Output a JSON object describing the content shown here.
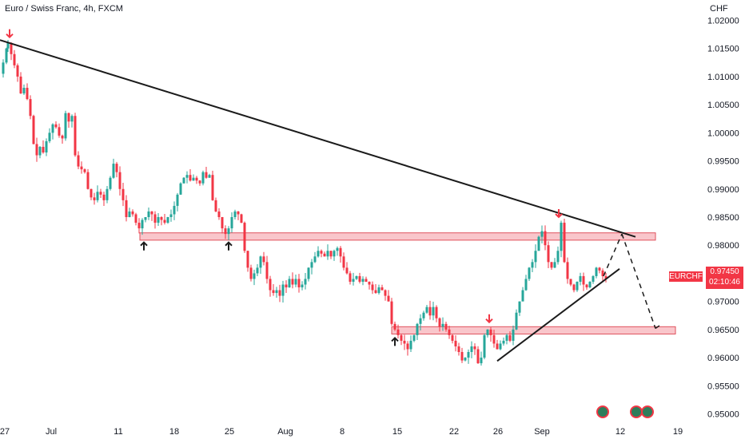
{
  "header": {
    "title": "Euro / Swiss Franc, 4h, FXCM",
    "currency": "CHF"
  },
  "price_marker": {
    "symbol": "EURCHF",
    "price": "0.97450",
    "countdown": "02:10:46"
  },
  "colors": {
    "bull": "#26a69a",
    "bear": "#f23645",
    "trend": "#1b1b1b",
    "zone_fill": "#f7b3b9",
    "zone_border": "#e0525e",
    "arrow_down": "#f23645",
    "arrow_up": "#1b1b1b"
  },
  "chart_data": {
    "type": "candlestick",
    "symbol": "EURCHF",
    "timeframe": "4h",
    "x_ticks": [
      "27",
      "Jul",
      "11",
      "18",
      "25",
      "Aug",
      "8",
      "15",
      "22",
      "26",
      "Sep",
      "12",
      "19"
    ],
    "y_ticks": [
      "1.02000",
      "1.01500",
      "1.01000",
      "1.00500",
      "1.00000",
      "0.99500",
      "0.99000",
      "0.98500",
      "0.98000",
      "0.97500",
      "0.97000",
      "0.96500",
      "0.96000",
      "0.95500",
      "0.95000"
    ],
    "ylim": [
      0.9495,
      1.0205
    ],
    "close_path": [
      {
        "x": 0,
        "y": 1.0105
      },
      {
        "x": 4,
        "y": 1.0125
      },
      {
        "x": 8,
        "y": 1.015
      },
      {
        "x": 10,
        "y": 1.016
      },
      {
        "x": 14,
        "y": 1.014
      },
      {
        "x": 18,
        "y": 1.012
      },
      {
        "x": 22,
        "y": 1.01
      },
      {
        "x": 26,
        "y": 1.007
      },
      {
        "x": 30,
        "y": 1.008
      },
      {
        "x": 34,
        "y": 1.006
      },
      {
        "x": 38,
        "y": 1.003
      },
      {
        "x": 42,
        "y": 0.998
      },
      {
        "x": 46,
        "y": 0.996
      },
      {
        "x": 50,
        "y": 0.9975
      },
      {
        "x": 54,
        "y": 0.9965
      },
      {
        "x": 58,
        "y": 0.9985
      },
      {
        "x": 62,
        "y": 1.0
      },
      {
        "x": 66,
        "y": 1.0015
      },
      {
        "x": 70,
        "y": 1.001
      },
      {
        "x": 74,
        "y": 0.9995
      },
      {
        "x": 78,
        "y": 0.999
      },
      {
        "x": 82,
        "y": 1.0035
      },
      {
        "x": 86,
        "y": 1.002
      },
      {
        "x": 90,
        "y": 1.003
      },
      {
        "x": 94,
        "y": 0.996
      },
      {
        "x": 98,
        "y": 0.994
      },
      {
        "x": 102,
        "y": 0.9935
      },
      {
        "x": 106,
        "y": 0.993
      },
      {
        "x": 110,
        "y": 0.99
      },
      {
        "x": 114,
        "y": 0.9885
      },
      {
        "x": 118,
        "y": 0.988
      },
      {
        "x": 122,
        "y": 0.9895
      },
      {
        "x": 126,
        "y": 0.989
      },
      {
        "x": 130,
        "y": 0.988
      },
      {
        "x": 134,
        "y": 0.99
      },
      {
        "x": 138,
        "y": 0.992
      },
      {
        "x": 142,
        "y": 0.9945
      },
      {
        "x": 146,
        "y": 0.993
      },
      {
        "x": 150,
        "y": 0.99
      },
      {
        "x": 154,
        "y": 0.988
      },
      {
        "x": 158,
        "y": 0.985
      },
      {
        "x": 162,
        "y": 0.986
      },
      {
        "x": 166,
        "y": 0.9855
      },
      {
        "x": 170,
        "y": 0.984
      },
      {
        "x": 174,
        "y": 0.983
      },
      {
        "x": 178,
        "y": 0.9845
      },
      {
        "x": 182,
        "y": 0.985
      },
      {
        "x": 186,
        "y": 0.986
      },
      {
        "x": 190,
        "y": 0.9855
      },
      {
        "x": 194,
        "y": 0.984
      },
      {
        "x": 198,
        "y": 0.985
      },
      {
        "x": 202,
        "y": 0.9845
      },
      {
        "x": 206,
        "y": 0.984
      },
      {
        "x": 210,
        "y": 0.985
      },
      {
        "x": 214,
        "y": 0.9855
      },
      {
        "x": 218,
        "y": 0.987
      },
      {
        "x": 222,
        "y": 0.989
      },
      {
        "x": 226,
        "y": 0.991
      },
      {
        "x": 230,
        "y": 0.992
      },
      {
        "x": 234,
        "y": 0.9925
      },
      {
        "x": 238,
        "y": 0.9915
      },
      {
        "x": 242,
        "y": 0.992
      },
      {
        "x": 246,
        "y": 0.9915
      },
      {
        "x": 250,
        "y": 0.991
      },
      {
        "x": 254,
        "y": 0.993
      },
      {
        "x": 258,
        "y": 0.992
      },
      {
        "x": 262,
        "y": 0.9925
      },
      {
        "x": 266,
        "y": 0.988
      },
      {
        "x": 270,
        "y": 0.986
      },
      {
        "x": 274,
        "y": 0.985
      },
      {
        "x": 278,
        "y": 0.983
      },
      {
        "x": 282,
        "y": 0.982
      },
      {
        "x": 286,
        "y": 0.983
      },
      {
        "x": 290,
        "y": 0.985
      },
      {
        "x": 294,
        "y": 0.986
      },
      {
        "x": 298,
        "y": 0.9855
      },
      {
        "x": 302,
        "y": 0.984
      },
      {
        "x": 306,
        "y": 0.979
      },
      {
        "x": 310,
        "y": 0.976
      },
      {
        "x": 314,
        "y": 0.974
      },
      {
        "x": 318,
        "y": 0.975
      },
      {
        "x": 322,
        "y": 0.976
      },
      {
        "x": 326,
        "y": 0.978
      },
      {
        "x": 330,
        "y": 0.977
      },
      {
        "x": 334,
        "y": 0.974
      },
      {
        "x": 338,
        "y": 0.972
      },
      {
        "x": 342,
        "y": 0.9715
      },
      {
        "x": 346,
        "y": 0.972
      },
      {
        "x": 350,
        "y": 0.971
      },
      {
        "x": 354,
        "y": 0.973
      },
      {
        "x": 358,
        "y": 0.9725
      },
      {
        "x": 362,
        "y": 0.974
      },
      {
        "x": 366,
        "y": 0.973
      },
      {
        "x": 370,
        "y": 0.974
      },
      {
        "x": 374,
        "y": 0.9725
      },
      {
        "x": 378,
        "y": 0.973
      },
      {
        "x": 382,
        "y": 0.974
      },
      {
        "x": 386,
        "y": 0.976
      },
      {
        "x": 390,
        "y": 0.977
      },
      {
        "x": 394,
        "y": 0.978
      },
      {
        "x": 398,
        "y": 0.979
      },
      {
        "x": 402,
        "y": 0.9785
      },
      {
        "x": 406,
        "y": 0.978
      },
      {
        "x": 410,
        "y": 0.979
      },
      {
        "x": 414,
        "y": 0.978
      },
      {
        "x": 418,
        "y": 0.979
      },
      {
        "x": 422,
        "y": 0.9795
      },
      {
        "x": 426,
        "y": 0.978
      },
      {
        "x": 430,
        "y": 0.976
      },
      {
        "x": 434,
        "y": 0.975
      },
      {
        "x": 438,
        "y": 0.9735
      },
      {
        "x": 442,
        "y": 0.974
      },
      {
        "x": 446,
        "y": 0.9745
      },
      {
        "x": 450,
        "y": 0.9735
      },
      {
        "x": 454,
        "y": 0.974
      },
      {
        "x": 458,
        "y": 0.9735
      },
      {
        "x": 462,
        "y": 0.973
      },
      {
        "x": 466,
        "y": 0.972
      },
      {
        "x": 470,
        "y": 0.9715
      },
      {
        "x": 474,
        "y": 0.9725
      },
      {
        "x": 478,
        "y": 0.972
      },
      {
        "x": 482,
        "y": 0.971
      },
      {
        "x": 486,
        "y": 0.97
      },
      {
        "x": 490,
        "y": 0.966
      },
      {
        "x": 494,
        "y": 0.965
      },
      {
        "x": 498,
        "y": 0.964
      },
      {
        "x": 502,
        "y": 0.963
      },
      {
        "x": 506,
        "y": 0.9625
      },
      {
        "x": 510,
        "y": 0.9615
      },
      {
        "x": 514,
        "y": 0.963
      },
      {
        "x": 518,
        "y": 0.964
      },
      {
        "x": 522,
        "y": 0.966
      },
      {
        "x": 526,
        "y": 0.967
      },
      {
        "x": 530,
        "y": 0.968
      },
      {
        "x": 534,
        "y": 0.969
      },
      {
        "x": 538,
        "y": 0.9675
      },
      {
        "x": 542,
        "y": 0.969
      },
      {
        "x": 546,
        "y": 0.967
      },
      {
        "x": 550,
        "y": 0.9655
      },
      {
        "x": 554,
        "y": 0.966
      },
      {
        "x": 558,
        "y": 0.965
      },
      {
        "x": 562,
        "y": 0.964
      },
      {
        "x": 566,
        "y": 0.963
      },
      {
        "x": 570,
        "y": 0.962
      },
      {
        "x": 574,
        "y": 0.961
      },
      {
        "x": 578,
        "y": 0.9595
      },
      {
        "x": 582,
        "y": 0.96
      },
      {
        "x": 586,
        "y": 0.961
      },
      {
        "x": 590,
        "y": 0.962
      },
      {
        "x": 594,
        "y": 0.9615
      },
      {
        "x": 598,
        "y": 0.959
      },
      {
        "x": 602,
        "y": 0.96
      },
      {
        "x": 606,
        "y": 0.964
      },
      {
        "x": 610,
        "y": 0.965
      },
      {
        "x": 614,
        "y": 0.964
      },
      {
        "x": 618,
        "y": 0.9625
      },
      {
        "x": 622,
        "y": 0.9615
      },
      {
        "x": 626,
        "y": 0.9625
      },
      {
        "x": 630,
        "y": 0.963
      },
      {
        "x": 634,
        "y": 0.964
      },
      {
        "x": 638,
        "y": 0.963
      },
      {
        "x": 642,
        "y": 0.965
      },
      {
        "x": 646,
        "y": 0.968
      },
      {
        "x": 650,
        "y": 0.97
      },
      {
        "x": 654,
        "y": 0.972
      },
      {
        "x": 658,
        "y": 0.974
      },
      {
        "x": 662,
        "y": 0.976
      },
      {
        "x": 666,
        "y": 0.977
      },
      {
        "x": 670,
        "y": 0.979
      },
      {
        "x": 674,
        "y": 0.9815
      },
      {
        "x": 678,
        "y": 0.9825
      },
      {
        "x": 682,
        "y": 0.98
      },
      {
        "x": 686,
        "y": 0.977
      },
      {
        "x": 690,
        "y": 0.976
      },
      {
        "x": 694,
        "y": 0.977
      },
      {
        "x": 698,
        "y": 0.979
      },
      {
        "x": 702,
        "y": 0.984
      },
      {
        "x": 706,
        "y": 0.977
      },
      {
        "x": 710,
        "y": 0.974
      },
      {
        "x": 714,
        "y": 0.973
      },
      {
        "x": 718,
        "y": 0.972
      },
      {
        "x": 722,
        "y": 0.9735
      },
      {
        "x": 726,
        "y": 0.9745
      },
      {
        "x": 730,
        "y": 0.973
      },
      {
        "x": 734,
        "y": 0.9725
      },
      {
        "x": 738,
        "y": 0.9735
      },
      {
        "x": 742,
        "y": 0.9745
      },
      {
        "x": 746,
        "y": 0.976
      },
      {
        "x": 750,
        "y": 0.9755
      },
      {
        "x": 754,
        "y": 0.9745
      },
      {
        "x": 758,
        "y": 0.974
      }
    ],
    "trendlines": [
      {
        "name": "descending-resistance",
        "from": {
          "x": 0,
          "y": 1.0165
        },
        "to": {
          "x": 795,
          "y": 0.9815
        }
      },
      {
        "name": "rising-support",
        "from": {
          "x": 622,
          "y": 0.9594
        },
        "to": {
          "x": 775,
          "y": 0.9758
        }
      }
    ],
    "projection": [
      {
        "x": 755,
        "y": 0.9745
      },
      {
        "x": 778,
        "y": 0.982
      },
      {
        "x": 820,
        "y": 0.9652
      },
      {
        "x": 828,
        "y": 0.966
      }
    ],
    "zones": [
      {
        "name": "resistance-zone",
        "y_top": 0.9822,
        "y_bottom": 0.9809,
        "x_start": 175,
        "x_end": 820
      },
      {
        "name": "support-zone",
        "y_top": 0.9655,
        "y_bottom": 0.9642,
        "x_start": 490,
        "x_end": 845
      }
    ],
    "down_arrows": [
      {
        "x": 12,
        "y": 1.017
      },
      {
        "x": 612,
        "y": 0.9663
      },
      {
        "x": 699,
        "y": 0.985
      }
    ],
    "up_arrows": [
      {
        "x": 180,
        "y": 0.9805
      },
      {
        "x": 286,
        "y": 0.9805
      },
      {
        "x": 494,
        "y": 0.9635
      }
    ],
    "event_markers": [
      {
        "x": 754
      },
      {
        "x": 796
      },
      {
        "x": 810
      }
    ],
    "grid": false,
    "axis_position": "right"
  }
}
